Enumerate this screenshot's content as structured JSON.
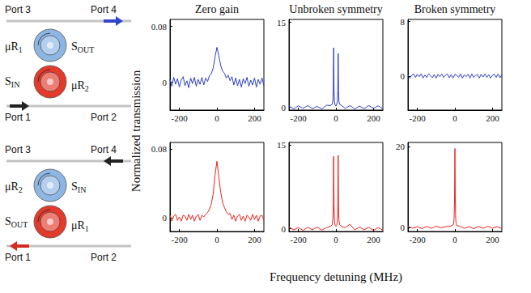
{
  "figure": {
    "y_label": "Normalized transmission",
    "x_label": "Frequency detuning (MHz)"
  },
  "diagrams": [
    {
      "port_tl": "Port 3",
      "port_tr": "Port 4",
      "port_bl": "Port 1",
      "port_br": "Port 2",
      "upper_ring": {
        "left": {
          "text": "μR",
          "sub": "1"
        },
        "right": {
          "text": "S",
          "sub": "OUT"
        },
        "color": "#8db6e4"
      },
      "lower_ring": {
        "left": {
          "text": "S",
          "sub": "IN"
        },
        "right": {
          "text": "μR",
          "sub": "2"
        },
        "color": "#e33a2b"
      },
      "upper_arrow": {
        "side": "right",
        "direction": "right",
        "color": "#2f46c8"
      },
      "lower_arrow": {
        "side": "left",
        "direction": "right",
        "color": "#222222"
      }
    },
    {
      "port_tl": "Port 3",
      "port_tr": "Port 4",
      "port_bl": "Port 1",
      "port_br": "Port 2",
      "upper_ring": {
        "left": {
          "text": "μR",
          "sub": "2"
        },
        "right": {
          "text": "S",
          "sub": "IN"
        },
        "color": "#8db6e4"
      },
      "lower_ring": {
        "left": {
          "text": "S",
          "sub": "OUT"
        },
        "right": {
          "text": "μR",
          "sub": "1"
        },
        "color": "#e33a2b"
      },
      "upper_arrow": {
        "side": "right",
        "direction": "left",
        "color": "#222222"
      },
      "lower_arrow": {
        "side": "left",
        "direction": "left",
        "color": "#d42a22"
      }
    }
  ],
  "chart_data": [
    {
      "type": "line",
      "title": "Zero gain",
      "color": "#2b3fc4",
      "grid": false,
      "xlim": [
        -250,
        250
      ],
      "xticks": [
        -200,
        0,
        200
      ],
      "ylim": [
        -0.04,
        0.09
      ],
      "yticks": [
        0,
        0.08
      ],
      "x": [
        -250,
        -240,
        -230,
        -220,
        -210,
        -200,
        -190,
        -180,
        -170,
        -160,
        -150,
        -140,
        -130,
        -120,
        -110,
        -100,
        -90,
        -80,
        -70,
        -60,
        -50,
        -40,
        -30,
        -20,
        -10,
        0,
        10,
        20,
        30,
        40,
        50,
        60,
        70,
        80,
        90,
        100,
        110,
        120,
        130,
        140,
        150,
        160,
        170,
        180,
        190,
        200,
        210,
        220,
        230,
        240,
        250
      ],
      "values": [
        0.004,
        -0.006,
        0.007,
        -0.003,
        0.005,
        -0.007,
        0.003,
        0.008,
        -0.005,
        0.002,
        -0.008,
        0.006,
        -0.002,
        0.007,
        -0.006,
        0.004,
        -0.003,
        0.007,
        -0.004,
        0.006,
        0.001,
        0.009,
        0.012,
        0.02,
        0.036,
        0.05,
        0.038,
        0.024,
        0.016,
        0.013,
        0.006,
        0.01,
        0.002,
        0.008,
        -0.004,
        0.006,
        -0.005,
        0.004,
        -0.007,
        0.005,
        -0.002,
        0.007,
        -0.006,
        0.003,
        -0.004,
        0.006,
        -0.007,
        0.004,
        -0.003,
        0.006,
        -0.005
      ]
    },
    {
      "type": "line",
      "title": "Unbroken symmetry",
      "color": "#2b3fc4",
      "grid": false,
      "xlim": [
        -250,
        250
      ],
      "xticks": [
        -200,
        0,
        200
      ],
      "ylim": [
        -0.5,
        15.5
      ],
      "yticks": [
        0,
        15
      ],
      "x": [
        -250,
        -225,
        -200,
        -175,
        -150,
        -125,
        -100,
        -75,
        -50,
        -30,
        -20,
        -16,
        -14,
        -12,
        -10,
        -8,
        -4,
        0,
        4,
        8,
        10,
        12,
        14,
        16,
        20,
        30,
        50,
        75,
        100,
        125,
        150,
        175,
        200,
        225,
        250
      ],
      "values": [
        0.2,
        -0.3,
        0.25,
        -0.2,
        0.3,
        -0.25,
        0.15,
        -0.3,
        0.35,
        0.3,
        0.5,
        1.2,
        3.5,
        10.5,
        3.2,
        1.0,
        0.4,
        0.2,
        0.5,
        1.1,
        3.0,
        9.5,
        3.0,
        1.0,
        0.5,
        0.3,
        -0.2,
        0.3,
        -0.3,
        0.2,
        -0.25,
        0.3,
        -0.2,
        0.25,
        -0.3
      ]
    },
    {
      "type": "line",
      "title": "Broken symmetry",
      "color": "#2b3fc4",
      "grid": false,
      "xlim": [
        -250,
        250
      ],
      "xticks": [
        -200,
        0,
        200
      ],
      "ylim": [
        -5,
        8.3
      ],
      "yticks": [
        0,
        8
      ],
      "x": [
        -250,
        -240,
        -230,
        -220,
        -210,
        -200,
        -190,
        -180,
        -170,
        -160,
        -150,
        -140,
        -130,
        -120,
        -110,
        -100,
        -90,
        -80,
        -70,
        -60,
        -50,
        -40,
        -30,
        -20,
        -10,
        0,
        10,
        20,
        30,
        40,
        50,
        60,
        70,
        80,
        90,
        100,
        110,
        120,
        130,
        140,
        150,
        160,
        170,
        180,
        190,
        200,
        210,
        220,
        230,
        240,
        250
      ],
      "values": [
        0.2,
        -0.3,
        0.1,
        0.3,
        -0.2,
        0.25,
        -0.1,
        0.3,
        -0.3,
        0.15,
        -0.2,
        0.3,
        0.05,
        -0.25,
        0.2,
        -0.3,
        0.25,
        -0.1,
        0.3,
        -0.2,
        0.1,
        0.3,
        -0.25,
        0.2,
        -0.3,
        0.25,
        0.1,
        -0.2,
        0.3,
        -0.3,
        0.2,
        -0.1,
        0.25,
        -0.3,
        0.3,
        -0.2,
        0.1,
        0.2,
        -0.3,
        0.25,
        -0.15,
        0.3,
        -0.2,
        0.2,
        -0.3,
        0.1,
        0.25,
        -0.2,
        0.3,
        -0.25,
        0.2
      ]
    },
    {
      "type": "line",
      "color": "#e8231f",
      "grid": false,
      "xlim": [
        -250,
        250
      ],
      "xticks": [
        -200,
        0,
        200
      ],
      "ylim": [
        -0.016,
        0.088
      ],
      "yticks": [
        0,
        0.08
      ],
      "x": [
        -250,
        -240,
        -230,
        -220,
        -210,
        -200,
        -190,
        -180,
        -170,
        -160,
        -150,
        -140,
        -130,
        -120,
        -110,
        -100,
        -90,
        -80,
        -70,
        -60,
        -50,
        -40,
        -30,
        -20,
        -10,
        0,
        10,
        20,
        30,
        40,
        50,
        60,
        70,
        80,
        90,
        100,
        110,
        120,
        130,
        140,
        150,
        160,
        170,
        180,
        190,
        200,
        210,
        220,
        230,
        240,
        250
      ],
      "values": [
        0.003,
        -0.004,
        0.002,
        0.004,
        -0.003,
        0.001,
        -0.004,
        0.003,
        0.002,
        -0.003,
        0.004,
        -0.002,
        0.003,
        -0.004,
        0.002,
        0.004,
        -0.003,
        0.003,
        0.001,
        0.004,
        0.006,
        0.01,
        0.016,
        0.028,
        0.05,
        0.066,
        0.048,
        0.03,
        0.018,
        0.012,
        0.007,
        0.004,
        0.005,
        -0.002,
        0.003,
        -0.004,
        0.002,
        0.004,
        -0.003,
        0.002,
        -0.004,
        0.003,
        0.001,
        -0.003,
        0.004,
        -0.002,
        0.003,
        -0.004,
        0.002,
        0.003,
        -0.003
      ]
    },
    {
      "type": "line",
      "color": "#e8231f",
      "grid": false,
      "xlim": [
        -250,
        250
      ],
      "xticks": [
        -200,
        0,
        200
      ],
      "ylim": [
        -0.5,
        15.5
      ],
      "yticks": [
        0,
        15
      ],
      "x": [
        -250,
        -225,
        -200,
        -175,
        -150,
        -125,
        -100,
        -75,
        -50,
        -30,
        -20,
        -16,
        -14,
        -12,
        -10,
        -8,
        -4,
        0,
        4,
        8,
        10,
        12,
        14,
        16,
        20,
        30,
        50,
        75,
        100,
        125,
        150,
        175,
        200,
        225,
        250
      ],
      "values": [
        0.3,
        -0.2,
        0.2,
        -0.3,
        0.25,
        -0.2,
        0.3,
        -0.25,
        0.2,
        0.4,
        0.7,
        1.8,
        4.5,
        13,
        4.2,
        1.5,
        0.6,
        0.4,
        0.6,
        1.5,
        4.0,
        13.2,
        4.3,
        1.6,
        0.7,
        0.4,
        0.2,
        0.8,
        -0.2,
        0.3,
        -0.2,
        0.25,
        -0.3,
        0.2,
        -0.25
      ]
    },
    {
      "type": "line",
      "color": "#e8231f",
      "grid": false,
      "xlim": [
        -250,
        250
      ],
      "xticks": [
        -200,
        0,
        200
      ],
      "ylim": [
        -1,
        21
      ],
      "yticks": [
        0,
        20
      ],
      "x": [
        -250,
        -225,
        -200,
        -175,
        -150,
        -125,
        -100,
        -75,
        -50,
        -25,
        -10,
        -6,
        -4,
        -2,
        0,
        2,
        4,
        6,
        10,
        25,
        50,
        75,
        100,
        125,
        150,
        175,
        200,
        225,
        250
      ],
      "values": [
        0.3,
        -0.2,
        0.2,
        -0.3,
        0.25,
        -0.2,
        0.3,
        -0.1,
        0.2,
        0.3,
        0.6,
        1.2,
        2.5,
        7,
        19.5,
        7,
        2.3,
        1.1,
        0.5,
        0.3,
        -0.2,
        0.2,
        -0.3,
        0.25,
        -0.2,
        0.3,
        -0.2,
        0.2,
        -0.3
      ]
    }
  ]
}
